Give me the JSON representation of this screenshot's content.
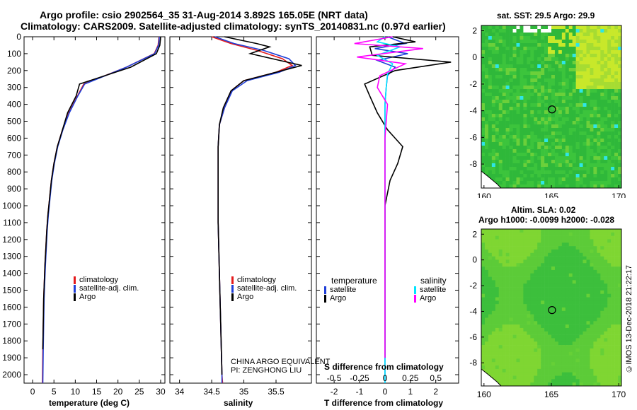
{
  "header": {
    "title_line1": "Argo profile: csio 2902564_35 31-Aug-2014 3.892S 165.05E (NRT data)",
    "title_line2": "Climatology: CARS2009. Satellite-adjusted climatology: synTS_20140831.nc (0.97d earlier)"
  },
  "colors": {
    "climatology": "#e41a1c",
    "satellite": "#1f3fd8",
    "argo": "#000000",
    "sal_satellite": "#00e5ff",
    "sal_argo": "#ff00ff",
    "map_green": "#3cc43c",
    "map_yellow": "#c8e82a"
  },
  "depth_axis": {
    "ticks": [
      "0",
      "100",
      "200",
      "300",
      "400",
      "500",
      "600",
      "700",
      "800",
      "900",
      "1000",
      "1100",
      "1200",
      "1300",
      "1400",
      "1500",
      "1600",
      "1700",
      "1800",
      "1900",
      "2000"
    ]
  },
  "panels": {
    "temperature": {
      "xlabel": "temperature (deg C)",
      "xticks": [
        "0",
        "5",
        "10",
        "15",
        "20",
        "25",
        "30"
      ],
      "legend": [
        "climatology",
        "satellite-adj. clim.",
        "Argo"
      ]
    },
    "salinity": {
      "xlabel": "salinity",
      "xticks": [
        "34",
        "34.5",
        "35",
        "35.5"
      ],
      "legend": [
        "climatology",
        "satellite-adj. clim.",
        "Argo"
      ],
      "note_line1": "CHINA ARGO EQUIVALENT",
      "note_line2": "PI: ZENGHONG LIU"
    },
    "difference": {
      "xlabel": "T difference from climatology",
      "top_label": "S difference from climatology",
      "xticks": [
        "-2",
        "-1",
        "0",
        "1",
        "2"
      ],
      "sticks": [
        "-0.5",
        "-0.25",
        "0",
        "0.25",
        "0.5"
      ],
      "legend_temp_title": "temperature",
      "legend_sal_title": "salinity",
      "legend_temp": [
        "satellite",
        "Argo"
      ],
      "legend_sal": [
        "satellite",
        "Argo"
      ]
    }
  },
  "maps": {
    "sst": {
      "title": "sat. SST: 29.5 Argo: 29.9",
      "xticks": [
        "160",
        "165",
        "170"
      ],
      "yticks": [
        "2",
        "0",
        "-2",
        "-4",
        "-6",
        "-8"
      ]
    },
    "sla": {
      "title_line1": "Altim. SLA: 0.02",
      "title_line2": "Argo h1000: -0.0099 h2000: -0.028",
      "xticks": [
        "160",
        "165",
        "170"
      ],
      "yticks": [
        "2",
        "0",
        "-2",
        "-4",
        "-6",
        "-8"
      ]
    }
  },
  "credit": "©IMOS 13-Dec-2018 21:22:17",
  "chart_data": [
    {
      "type": "line",
      "title": "",
      "xlabel": "temperature (deg C)",
      "ylabel": "",
      "xlim": [
        -2,
        31
      ],
      "ylim": [
        2050,
        0
      ],
      "series": [
        {
          "name": "climatology",
          "x": [
            29.6,
            29.4,
            28.5,
            22,
            12,
            10.5,
            8.5,
            7,
            5.8,
            5,
            4.4,
            4,
            3.6,
            3.3,
            3.1,
            2.9,
            2.75,
            2.6,
            2.5,
            2.4,
            2.3
          ],
          "y": [
            0,
            50,
            100,
            180,
            280,
            350,
            450,
            550,
            650,
            750,
            850,
            950,
            1050,
            1150,
            1250,
            1350,
            1450,
            1550,
            1700,
            1850,
            2050
          ]
        },
        {
          "name": "satellite-adj. clim.",
          "x": [
            29.7,
            29.5,
            28.6,
            22,
            12.2,
            10.6,
            8.6,
            7.1,
            5.9,
            5.1,
            4.5,
            4.1,
            3.7,
            3.4,
            3.2,
            3,
            2.85,
            2.7,
            2.6,
            2.5,
            2.4
          ],
          "y": [
            0,
            50,
            100,
            180,
            280,
            350,
            450,
            550,
            650,
            750,
            850,
            950,
            1050,
            1150,
            1250,
            1350,
            1450,
            1550,
            1700,
            1850,
            2050
          ]
        },
        {
          "name": "Argo",
          "x": [
            30,
            29.8,
            29,
            23,
            11,
            10.2,
            8.2,
            7,
            5.8,
            5,
            4.4,
            4,
            3.6,
            3.3,
            3.1,
            2.9,
            2.75,
            2.6,
            2.5,
            2.4
          ],
          "y": [
            0,
            50,
            100,
            180,
            280,
            350,
            450,
            550,
            650,
            750,
            850,
            950,
            1050,
            1150,
            1250,
            1350,
            1450,
            1550,
            1700,
            1850
          ]
        }
      ]
    },
    {
      "type": "line",
      "title": "",
      "xlabel": "salinity",
      "ylabel": "",
      "xlim": [
        33.85,
        36.05
      ],
      "ylim": [
        2050,
        0
      ],
      "series": [
        {
          "name": "climatology",
          "x": [
            34.5,
            34.8,
            35.2,
            35.6,
            35.75,
            35.5,
            35.0,
            34.8,
            34.7,
            34.62,
            34.6,
            34.6,
            34.6,
            34.6,
            34.61,
            34.62,
            34.63,
            34.64,
            34.65,
            34.66,
            34.67
          ],
          "y": [
            0,
            40,
            80,
            130,
            170,
            210,
            260,
            320,
            420,
            520,
            650,
            800,
            950,
            1100,
            1250,
            1400,
            1550,
            1700,
            1850,
            2000,
            2050
          ]
        },
        {
          "name": "satellite-adj. clim.",
          "x": [
            34.55,
            34.85,
            35.3,
            35.7,
            35.8,
            35.55,
            35.05,
            34.82,
            34.7,
            34.62,
            34.6,
            34.6,
            34.6,
            34.6,
            34.61,
            34.62,
            34.63,
            34.64,
            34.65,
            34.66,
            34.66
          ],
          "y": [
            0,
            40,
            80,
            130,
            170,
            210,
            260,
            320,
            420,
            520,
            650,
            800,
            950,
            1100,
            1250,
            1400,
            1550,
            1700,
            1850,
            2000,
            2050
          ]
        },
        {
          "name": "Argo",
          "x": [
            34.7,
            35.2,
            35.4,
            35.1,
            35.9,
            35.5,
            35.0,
            34.8,
            34.68,
            34.62,
            34.6,
            34.6,
            34.6,
            34.6,
            34.61,
            34.62,
            34.63,
            34.64,
            34.65,
            34.66
          ],
          "y": [
            0,
            40,
            60,
            100,
            170,
            210,
            260,
            320,
            420,
            520,
            650,
            800,
            950,
            1100,
            1250,
            1400,
            1550,
            1700,
            1850,
            2000
          ]
        }
      ]
    },
    {
      "type": "line",
      "title": "",
      "xlabel": "T difference from climatology",
      "ylabel": "",
      "xlim": [
        -2.7,
        2.9
      ],
      "ylim": [
        2050,
        0
      ],
      "series": [
        {
          "name": "temperature satellite",
          "x": [
            0.1,
            0.8,
            -0.4,
            0.9,
            -0.3,
            0.4,
            0.1,
            0.05,
            0,
            0,
            0,
            0,
            0,
            0,
            0,
            0
          ],
          "y": [
            0,
            40,
            70,
            100,
            140,
            180,
            230,
            300,
            400,
            600,
            800,
            1000,
            1300,
            1600,
            1900,
            2050
          ]
        },
        {
          "name": "temperature Argo",
          "x": [
            0.3,
            1.2,
            -0.6,
            -0.5,
            2.6,
            0.4,
            -0.8,
            -0.6,
            -0.3,
            0.1,
            0.7,
            0.5,
            0.2,
            0,
            0,
            0,
            0
          ],
          "y": [
            0,
            30,
            60,
            110,
            150,
            200,
            280,
            350,
            450,
            550,
            650,
            750,
            850,
            1000,
            1300,
            1600,
            1900
          ]
        },
        {
          "name": "salinity satellite",
          "x": [
            0,
            -0.3,
            0.6,
            -0.3,
            0.3,
            0.1,
            0.05,
            0,
            0,
            0,
            0,
            0,
            0,
            0
          ],
          "y": [
            0,
            30,
            60,
            110,
            160,
            220,
            300,
            400,
            600,
            800,
            1000,
            1300,
            1600,
            2050
          ]
        },
        {
          "name": "salinity Argo",
          "x": [
            0.3,
            -1.2,
            1.5,
            -1.1,
            0.8,
            -0.2,
            -0.3,
            0.1,
            0,
            0,
            0,
            0,
            0
          ],
          "y": [
            0,
            40,
            70,
            120,
            160,
            230,
            300,
            400,
            600,
            800,
            1000,
            1400,
            1900
          ]
        }
      ]
    }
  ]
}
